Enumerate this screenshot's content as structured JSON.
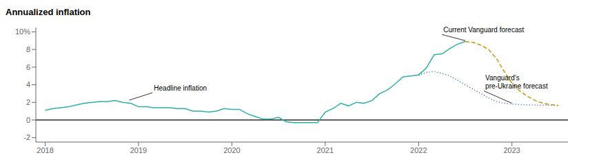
{
  "chart_data": {
    "type": "line",
    "title": "Annualized inflation",
    "xlim": [
      2017.9,
      2023.6
    ],
    "xticks": [
      2018,
      2019,
      2020,
      2021,
      2022,
      2023
    ],
    "ylim": [
      -2.5,
      10.5
    ],
    "yticks": [
      -2,
      0,
      2,
      4,
      6,
      8,
      {
        "value": 10,
        "label": "10%"
      }
    ],
    "grid": false,
    "legend": false,
    "series": [
      {
        "color": "#2ab0a8",
        "line_style": "solid",
        "x": [
          2018.0,
          2018.083,
          2018.167,
          2018.25,
          2018.333,
          2018.417,
          2018.5,
          2018.583,
          2018.667,
          2018.75,
          2018.833,
          2018.917,
          2019.0,
          2019.083,
          2019.167,
          2019.25,
          2019.333,
          2019.417,
          2019.5,
          2019.583,
          2019.667,
          2019.75,
          2019.833,
          2019.917,
          2020.0,
          2020.083,
          2020.167,
          2020.25,
          2020.333,
          2020.417,
          2020.5,
          2020.583,
          2020.667,
          2020.75,
          2020.833,
          2020.917,
          2021.0,
          2021.083,
          2021.167,
          2021.25,
          2021.333,
          2021.417,
          2021.5,
          2021.583,
          2021.667,
          2021.75,
          2021.833,
          2021.917,
          2022.0,
          2022.083,
          2022.167,
          2022.25,
          2022.333,
          2022.417,
          2022.5
        ],
        "values": [
          1.1,
          1.3,
          1.4,
          1.5,
          1.7,
          1.9,
          2.0,
          2.1,
          2.1,
          2.2,
          2.0,
          1.9,
          1.5,
          1.5,
          1.4,
          1.4,
          1.4,
          1.3,
          1.3,
          1.0,
          1.0,
          0.9,
          1.0,
          1.3,
          1.2,
          1.2,
          0.7,
          0.4,
          0.1,
          0.1,
          0.3,
          -0.2,
          -0.3,
          -0.3,
          -0.3,
          -0.3,
          0.9,
          1.3,
          1.9,
          1.6,
          2.0,
          1.9,
          2.2,
          3.0,
          3.4,
          4.1,
          4.9,
          5.0,
          5.1,
          5.9,
          7.4,
          7.5,
          8.1,
          8.6,
          8.9
        ]
      },
      {
        "color": "#2a6099",
        "line_style": "dotted",
        "x": [
          2022.0,
          2022.083,
          2022.167,
          2022.25,
          2022.333,
          2022.417,
          2022.5,
          2022.583,
          2022.667,
          2022.75,
          2022.833,
          2022.917,
          2023.0,
          2023.083,
          2023.167,
          2023.25,
          2023.333,
          2023.417,
          2023.5
        ],
        "values": [
          5.1,
          5.4,
          5.5,
          5.3,
          5.0,
          4.5,
          4.0,
          3.5,
          3.0,
          2.5,
          2.1,
          1.9,
          1.8,
          1.75,
          1.72,
          1.7,
          1.68,
          1.67,
          1.65
        ]
      },
      {
        "color": "#c8960c",
        "line_style": "dashed",
        "x": [
          2022.5,
          2022.583,
          2022.667,
          2022.75,
          2022.833,
          2022.917,
          2023.0,
          2023.083,
          2023.167,
          2023.25,
          2023.333,
          2023.417,
          2023.5
        ],
        "values": [
          8.9,
          8.8,
          8.5,
          8.0,
          7.0,
          5.5,
          4.2,
          3.3,
          2.7,
          2.2,
          1.9,
          1.75,
          1.65
        ]
      }
    ],
    "annotations": [
      {
        "text": "Headline inflation",
        "xy": [
          2018.9,
          2.25
        ],
        "xytext": [
          2019.15,
          3.1
        ]
      },
      {
        "text": "Current Vanguard forecast",
        "xy": [
          2022.5,
          9.0
        ],
        "xytext": [
          2022.25,
          9.7
        ]
      },
      {
        "text": "Vanguard's\npre-Ukraine forecast",
        "xy": [
          2023.0,
          1.9
        ],
        "xytext": [
          2022.7,
          3.3
        ]
      }
    ]
  }
}
